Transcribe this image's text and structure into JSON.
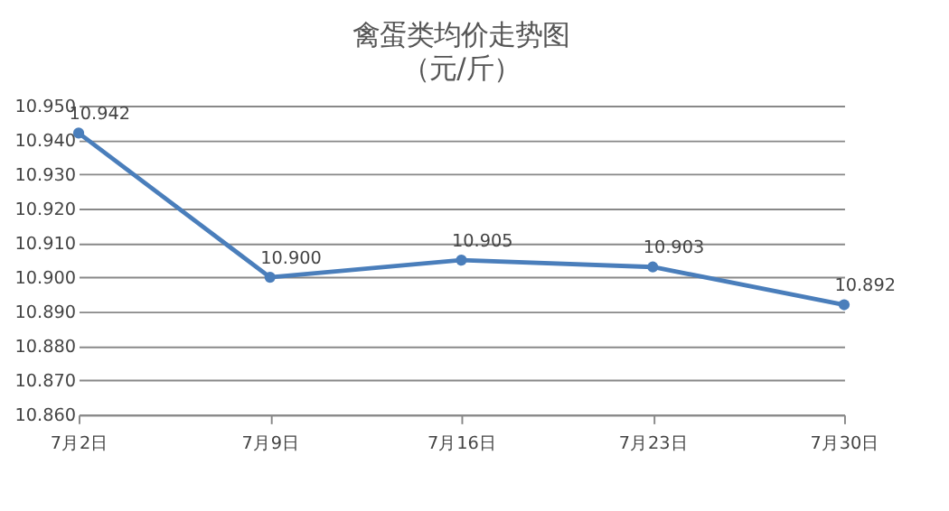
{
  "chart_data": {
    "type": "line",
    "title": "禽蛋类均价走势图",
    "subtitle": "（元/斤）",
    "categories": [
      "7月2日",
      "7月9日",
      "7月16日",
      "7月23日",
      "7月30日"
    ],
    "series": [
      {
        "color": "#4a7ebb",
        "values": [
          10.942,
          10.9,
          10.905,
          10.903,
          10.892
        ],
        "value_labels": [
          "10.942",
          "10.900",
          "10.905",
          "10.903",
          "10.892"
        ]
      }
    ],
    "ylim": [
      10.86,
      10.95
    ],
    "yticks": [
      {
        "value": 10.86,
        "label": "10.860"
      },
      {
        "value": 10.87,
        "label": "10.870"
      },
      {
        "value": 10.88,
        "label": "10.880"
      },
      {
        "value": 10.89,
        "label": "10.890"
      },
      {
        "value": 10.9,
        "label": "10.900"
      },
      {
        "value": 10.91,
        "label": "10.910"
      },
      {
        "value": 10.92,
        "label": "10.920"
      },
      {
        "value": 10.93,
        "label": "10.930"
      },
      {
        "value": 10.94,
        "label": "10.940"
      },
      {
        "value": 10.95,
        "label": "10.950"
      }
    ],
    "grid": "y",
    "marker": "circle",
    "line_style": "solid",
    "legend": false
  }
}
